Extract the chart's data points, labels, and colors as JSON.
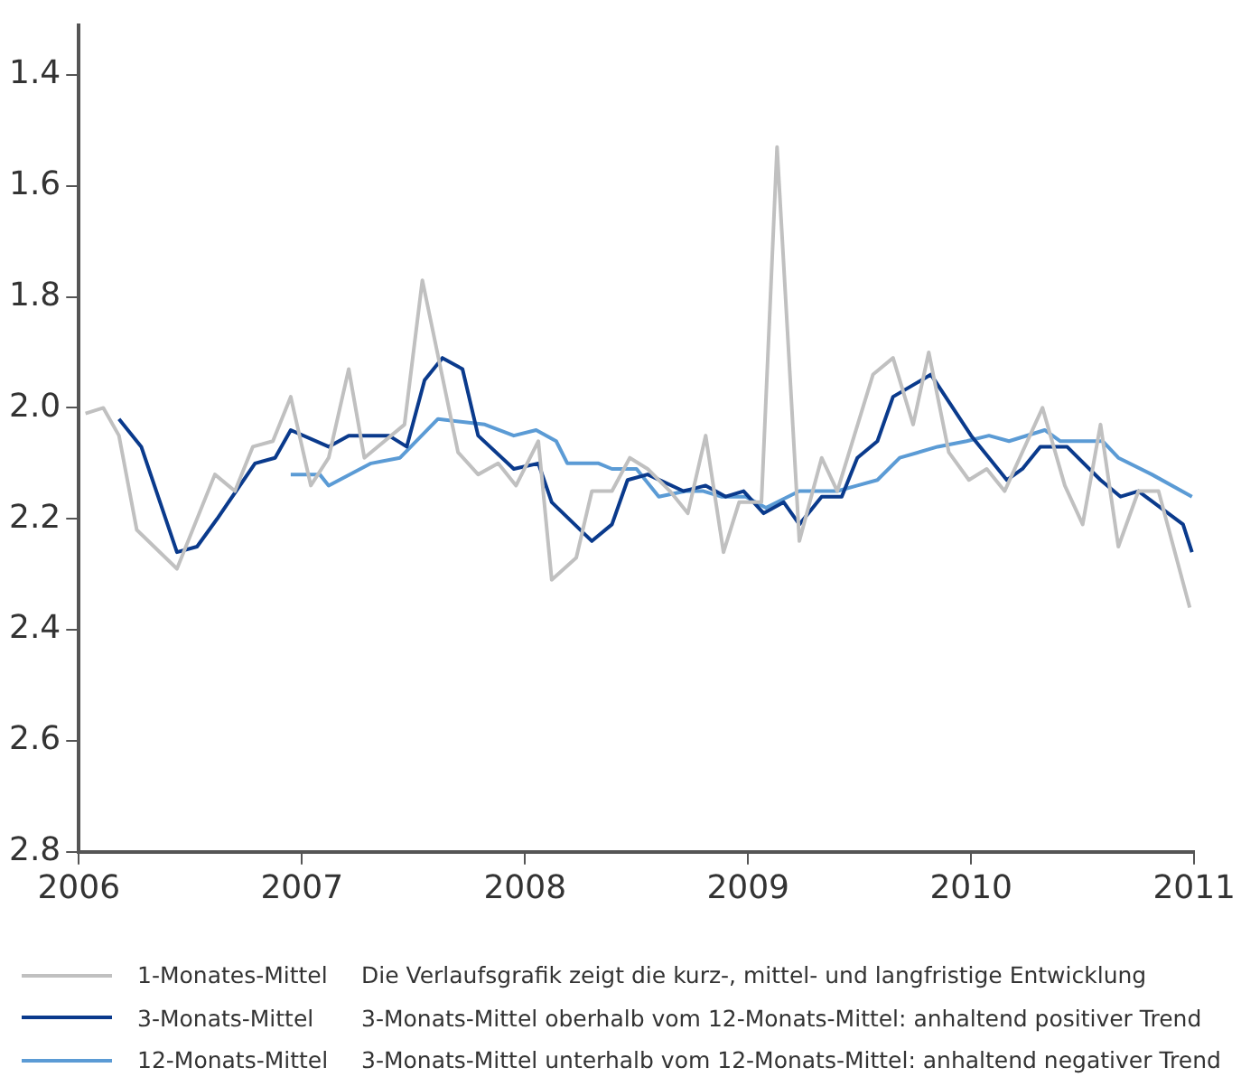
{
  "chart_data": {
    "type": "line",
    "xlim": [
      2006,
      2011
    ],
    "xticks": [
      2006,
      2007,
      2008,
      2009,
      2010,
      2011
    ],
    "ylim": [
      2.8,
      1.31
    ],
    "yticks": [
      1.4,
      1.6,
      1.8,
      {
        "value": 2,
        "label": "2.0"
      },
      2.2,
      2.4,
      2.6,
      2.8
    ],
    "grid": false,
    "legend": "bottom",
    "marker": "none",
    "line_style": "solid",
    "annotations": [
      "Die Verlaufsgrafik zeigt die kurz-, mittel- und langfristige Entwicklung",
      "3-Monats-Mittel oberhalb vom 12-Monats-Mittel: anhaltend positiver Trend",
      "3-Monats-Mittel unterhalb vom 12-Monats-Mittel: anhaltend negativer Trend"
    ],
    "series": [
      {
        "name": "1-Monates-Mittel",
        "color": "#c0c0c0",
        "x": [
          2006.03,
          2006.11,
          2006.18,
          2006.26,
          2006.44,
          2006.61,
          2006.7,
          2006.78,
          2006.87,
          2006.95,
          2007.04,
          2007.12,
          2007.21,
          2007.28,
          2007.46,
          2007.54,
          2007.7,
          2007.79,
          2007.88,
          2007.96,
          2008.06,
          2008.12,
          2008.23,
          2008.3,
          2008.39,
          2008.47,
          2008.55,
          2008.65,
          2008.73,
          2008.81,
          2008.89,
          2008.96,
          2009.06,
          2009.13,
          2009.23,
          2009.33,
          2009.4,
          2009.56,
          2009.65,
          2009.74,
          2009.81,
          2009.9,
          2009.99,
          2010.07,
          2010.15,
          2010.32,
          2010.42,
          2010.5,
          2010.58,
          2010.66,
          2010.75,
          2010.84,
          2010.98
        ],
        "values": [
          2.01,
          2.0,
          2.05,
          2.22,
          2.29,
          2.12,
          2.15,
          2.07,
          2.06,
          1.98,
          2.14,
          2.09,
          1.93,
          2.09,
          2.03,
          1.77,
          2.08,
          2.12,
          2.1,
          2.14,
          2.06,
          2.31,
          2.27,
          2.15,
          2.15,
          2.09,
          2.11,
          2.15,
          2.19,
          2.05,
          2.26,
          2.17,
          2.17,
          1.53,
          2.24,
          2.09,
          2.15,
          1.94,
          1.91,
          2.03,
          1.9,
          2.08,
          2.13,
          2.11,
          2.15,
          2.0,
          2.14,
          2.21,
          2.03,
          2.25,
          2.15,
          2.15,
          2.36
        ]
      },
      {
        "name": "3-Monats-Mittel",
        "color": "#0a3a8c",
        "x": [
          2006.18,
          2006.28,
          2006.44,
          2006.53,
          2006.62,
          2006.79,
          2006.88,
          2006.95,
          2007.12,
          2007.21,
          2007.39,
          2007.47,
          2007.55,
          2007.63,
          2007.72,
          2007.79,
          2007.95,
          2008.06,
          2008.12,
          2008.3,
          2008.39,
          2008.46,
          2008.55,
          2008.71,
          2008.81,
          2008.9,
          2008.98,
          2009.07,
          2009.16,
          2009.23,
          2009.33,
          2009.42,
          2009.49,
          2009.58,
          2009.65,
          2009.82,
          2010.0,
          2010.16,
          2010.23,
          2010.31,
          2010.43,
          2010.58,
          2010.67,
          2010.75,
          2010.95,
          2010.99
        ],
        "values": [
          2.02,
          2.07,
          2.26,
          2.25,
          2.2,
          2.1,
          2.09,
          2.04,
          2.07,
          2.05,
          2.05,
          2.07,
          1.95,
          1.91,
          1.93,
          2.05,
          2.11,
          2.1,
          2.17,
          2.24,
          2.21,
          2.13,
          2.12,
          2.15,
          2.14,
          2.16,
          2.15,
          2.19,
          2.17,
          2.21,
          2.16,
          2.16,
          2.09,
          2.06,
          1.98,
          1.94,
          2.05,
          2.13,
          2.11,
          2.07,
          2.07,
          2.13,
          2.16,
          2.15,
          2.21,
          2.26
        ]
      },
      {
        "name": "12-Monats-Mittel",
        "color": "#5b9bd5",
        "x": [
          2006.95,
          2007.08,
          2007.12,
          2007.31,
          2007.44,
          2007.61,
          2007.82,
          2007.95,
          2008.05,
          2008.14,
          2008.19,
          2008.33,
          2008.39,
          2008.5,
          2008.6,
          2008.72,
          2008.8,
          2008.88,
          2008.99,
          2009.08,
          2009.23,
          2009.4,
          2009.49,
          2009.58,
          2009.68,
          2009.85,
          2009.98,
          2010.08,
          2010.17,
          2010.33,
          2010.4,
          2010.52,
          2010.59,
          2010.66,
          2010.81,
          2010.99
        ],
        "values": [
          2.12,
          2.12,
          2.14,
          2.1,
          2.09,
          2.02,
          2.03,
          2.05,
          2.04,
          2.06,
          2.1,
          2.1,
          2.11,
          2.11,
          2.16,
          2.15,
          2.15,
          2.16,
          2.16,
          2.18,
          2.15,
          2.15,
          2.14,
          2.13,
          2.09,
          2.07,
          2.06,
          2.05,
          2.06,
          2.04,
          2.06,
          2.06,
          2.06,
          2.09,
          2.12,
          2.16
        ]
      }
    ]
  }
}
